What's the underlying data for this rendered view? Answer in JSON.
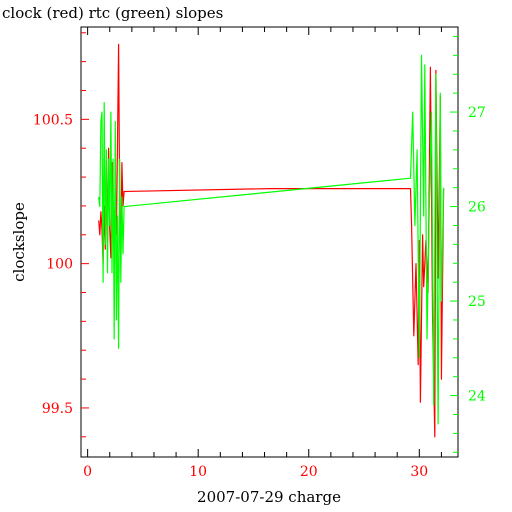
{
  "chart_data": {
    "type": "line",
    "title": "clock (red) rtc (green) slopes",
    "xlabel": "2007-07-29 charge",
    "ylabel": "clockslope",
    "xlim": [
      -0.6,
      33.5
    ],
    "ylim": [
      99.33,
      100.82
    ],
    "y2lim": [
      23.35,
      27.9
    ],
    "x_ticks": [
      0,
      10,
      20,
      30
    ],
    "y_ticks": [
      99.5,
      100,
      100.5
    ],
    "y2_ticks": [
      24,
      25,
      26,
      27
    ],
    "grid": false,
    "colors": {
      "clock": "#ff0000",
      "rtc": "#00ff00",
      "axis": "#000000"
    },
    "series": [
      {
        "name": "clock",
        "axis": "left",
        "x": [
          1.0,
          1.1,
          1.2,
          1.3,
          1.4,
          1.5,
          1.6,
          1.7,
          1.8,
          1.9,
          2.0,
          2.1,
          2.2,
          2.3,
          2.4,
          2.5,
          2.6,
          2.7,
          2.8,
          2.9,
          3.0,
          3.1,
          3.2,
          3.3,
          16.5,
          29.2,
          29.3,
          29.5,
          29.7,
          29.9,
          30.0,
          30.1,
          30.3,
          30.4,
          30.6,
          30.8,
          31.0,
          31.2,
          31.4,
          31.5,
          31.7,
          31.9,
          32.0,
          32.2
        ],
        "y": [
          100.15,
          100.1,
          100.18,
          100.12,
          100.0,
          100.2,
          100.05,
          100.3,
          100.08,
          100.4,
          100.12,
          100.02,
          100.35,
          100.15,
          100.05,
          100.28,
          100.1,
          100.42,
          100.76,
          100.2,
          100.05,
          100.35,
          100.2,
          100.25,
          100.26,
          100.26,
          100.13,
          99.75,
          100.0,
          99.65,
          100.08,
          99.52,
          100.1,
          99.92,
          100.08,
          99.9,
          100.68,
          99.8,
          99.4,
          100.67,
          99.95,
          100.58,
          99.6,
          100.26
        ]
      },
      {
        "name": "rtc",
        "axis": "right",
        "x": [
          1.0,
          1.1,
          1.2,
          1.3,
          1.4,
          1.5,
          1.6,
          1.7,
          1.8,
          1.9,
          2.0,
          2.1,
          2.2,
          2.3,
          2.4,
          2.5,
          2.6,
          2.7,
          2.8,
          2.9,
          3.0,
          3.1,
          3.2,
          3.3,
          29.2,
          29.4,
          29.6,
          29.8,
          30.0,
          30.2,
          30.4,
          30.5,
          30.7,
          30.9,
          31.1,
          31.3,
          31.5,
          31.7,
          31.9,
          32.0,
          32.2
        ],
        "y": [
          26.1,
          26.0,
          26.9,
          27.0,
          25.2,
          27.1,
          25.6,
          26.6,
          25.3,
          26.5,
          25.8,
          27.0,
          25.3,
          26.5,
          24.6,
          26.9,
          24.8,
          25.9,
          24.5,
          26.5,
          25.2,
          26.1,
          25.5,
          26.0,
          26.3,
          27.0,
          25.8,
          26.6,
          24.4,
          27.6,
          25.9,
          27.5,
          24.6,
          26.0,
          27.0,
          23.9,
          27.4,
          23.7,
          27.2,
          25.0,
          26.2
        ]
      }
    ]
  }
}
